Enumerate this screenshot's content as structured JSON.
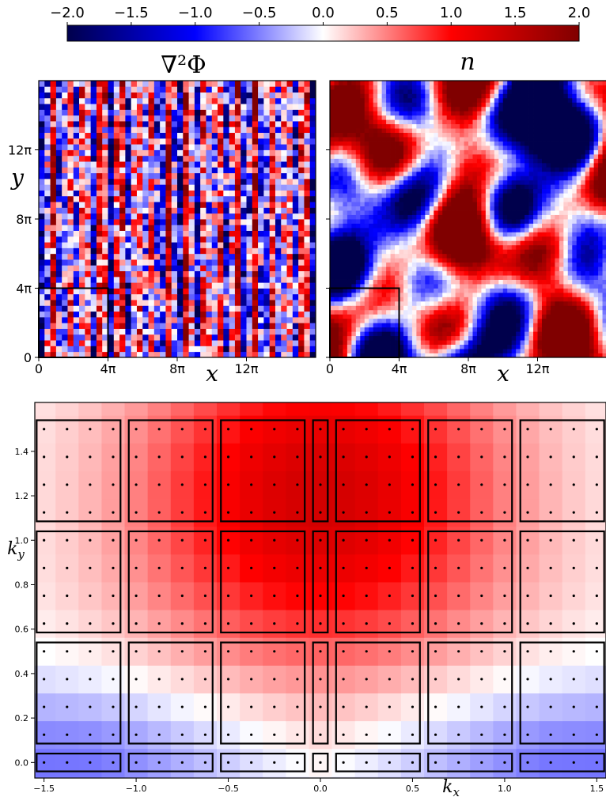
{
  "chart_data": [
    {
      "type": "colorbar",
      "colormap": "seismic",
      "ticks": [
        "−2.0",
        "−1.5",
        "−1.0",
        "−0.5",
        "0.0",
        "0.5",
        "1.0",
        "1.5",
        "2.0"
      ],
      "range": [
        -2.0,
        2.0
      ]
    },
    {
      "type": "heatmap",
      "title": "∇²Φ",
      "xlabel": "x",
      "ylabel": "y",
      "xticks": [
        "0",
        "4π",
        "8π",
        "12π"
      ],
      "yticks": [
        "0",
        "4π",
        "8π",
        "12π"
      ],
      "domain": [
        0,
        16
      ],
      "grid_cells": 48,
      "pattern": "vertical stripes (dominant x-wavenumber), near-uniform in y",
      "inset_box": {
        "x": [
          0,
          4
        ],
        "y": [
          0,
          4
        ]
      }
    },
    {
      "type": "heatmap",
      "title": "n",
      "xlabel": "x",
      "xticks": [
        "0",
        "4π",
        "8π",
        "12π"
      ],
      "domain": [
        0,
        16
      ],
      "grid_cells": 64,
      "pattern": "isotropic smooth blobs",
      "inset_box": {
        "x": [
          0,
          4
        ],
        "y": [
          0,
          4
        ]
      }
    },
    {
      "type": "heatmap",
      "xlabel": "k_x",
      "ylabel": "k_y",
      "xticks": [
        "−1.5",
        "−1.0",
        "−0.5",
        "0.0",
        "0.5",
        "1.0",
        "1.5"
      ],
      "yticks": [
        "0.0",
        "0.2",
        "0.4",
        "0.6",
        "0.8",
        "1.0",
        "1.2",
        "1.4"
      ],
      "xlim": [
        -1.55,
        1.55
      ],
      "ylim": [
        -0.07,
        1.62
      ],
      "kx_dots": [
        -1.5,
        -1.375,
        -1.25,
        -1.125,
        -1.0,
        -0.875,
        -0.75,
        -0.625,
        -0.5,
        -0.375,
        -0.25,
        -0.125,
        0.0,
        0.125,
        0.25,
        0.375,
        0.5,
        0.625,
        0.75,
        0.875,
        1.0,
        1.125,
        1.25,
        1.375,
        1.5
      ],
      "ky_dots": [
        0.0,
        0.125,
        0.25,
        0.375,
        0.5,
        0.625,
        0.75,
        0.875,
        1.0,
        1.125,
        1.25,
        1.375,
        1.5
      ],
      "box_kx_groups": [
        [
          -1.5,
          -1.125
        ],
        [
          -1.0,
          -0.625
        ],
        [
          -0.5,
          -0.125
        ],
        [
          0.0,
          0.0
        ],
        [
          0.125,
          0.5
        ],
        [
          0.625,
          1.0
        ],
        [
          1.125,
          1.5
        ]
      ],
      "box_ky_groups": [
        [
          0.0,
          0.0
        ],
        [
          0.125,
          0.5
        ],
        [
          0.625,
          1.0
        ],
        [
          1.125,
          1.5
        ]
      ],
      "growth_model": {
        "peak_kx": 0.0,
        "peak_ky": 1.2,
        "min_value": -0.45,
        "max_value": 1.1
      }
    }
  ]
}
